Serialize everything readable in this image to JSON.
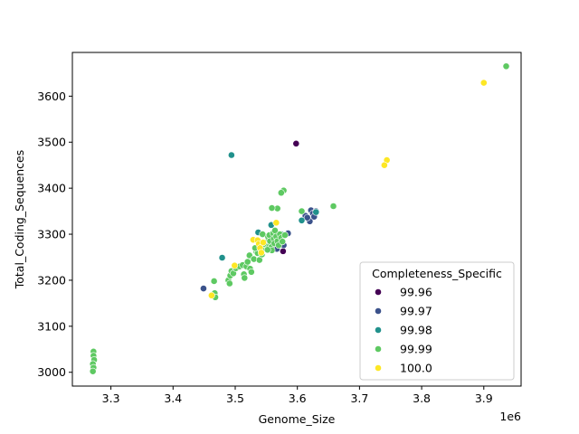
{
  "chart_data": {
    "type": "scatter",
    "title": "",
    "xlabel": "Genome_Size",
    "ylabel": "Total_Coding_Sequences",
    "x_offset_label": "1e6",
    "x_scale": 1000000,
    "xlim": [
      3.238,
      3.96
    ],
    "ylim": [
      2970,
      3695
    ],
    "xticks": [
      3.3,
      3.4,
      3.5,
      3.6,
      3.7,
      3.8,
      3.9
    ],
    "xtick_labels": [
      "3.3",
      "3.4",
      "3.5",
      "3.6",
      "3.7",
      "3.8",
      "3.9"
    ],
    "yticks": [
      3000,
      3100,
      3200,
      3300,
      3400,
      3500,
      3600
    ],
    "ytick_labels": [
      "3000",
      "3100",
      "3200",
      "3300",
      "3400",
      "3500",
      "3600"
    ],
    "grid": false,
    "legend": {
      "title": "Completeness_Specific",
      "placement": "lower-right",
      "entries": [
        {
          "label": "99.96",
          "color": "#440154"
        },
        {
          "label": "99.97",
          "color": "#3b528b"
        },
        {
          "label": "99.98",
          "color": "#21918c"
        },
        {
          "label": "99.99",
          "color": "#5ec962"
        },
        {
          "label": "100.0",
          "color": "#fde725"
        }
      ]
    },
    "series": [
      {
        "name": "99.96",
        "color": "#440154",
        "points": [
          [
            3.598,
            3497
          ],
          [
            3.577,
            3263
          ]
        ]
      },
      {
        "name": "99.97",
        "color": "#3b528b",
        "points": [
          [
            3.449,
            3182
          ],
          [
            3.578,
            3276
          ],
          [
            3.567,
            3268
          ],
          [
            3.585,
            3302
          ],
          [
            3.613,
            3340
          ],
          [
            3.618,
            3333
          ],
          [
            3.62,
            3328
          ],
          [
            3.622,
            3352
          ],
          [
            3.625,
            3345
          ],
          [
            3.63,
            3350
          ],
          [
            3.616,
            3336
          ],
          [
            3.627,
            3338
          ]
        ]
      },
      {
        "name": "99.98",
        "color": "#21918c",
        "points": [
          [
            3.494,
            3472
          ],
          [
            3.479,
            3249
          ],
          [
            3.558,
            3320
          ],
          [
            3.537,
            3304
          ],
          [
            3.607,
            3330
          ],
          [
            3.63,
            3348
          ],
          [
            3.575,
            3300
          ],
          [
            3.556,
            3290
          ]
        ]
      },
      {
        "name": "99.99",
        "color": "#5ec962",
        "points": [
          [
            3.272,
            3045
          ],
          [
            3.272,
            3036
          ],
          [
            3.273,
            3027
          ],
          [
            3.271,
            3018
          ],
          [
            3.272,
            3010
          ],
          [
            3.271,
            3002
          ],
          [
            3.936,
            3665
          ],
          [
            3.658,
            3361
          ],
          [
            3.607,
            3350
          ],
          [
            3.578,
            3395
          ],
          [
            3.574,
            3390
          ],
          [
            3.568,
            3356
          ],
          [
            3.559,
            3357
          ],
          [
            3.466,
            3198
          ],
          [
            3.467,
            3172
          ],
          [
            3.468,
            3163
          ],
          [
            3.489,
            3200
          ],
          [
            3.491,
            3193
          ],
          [
            3.492,
            3210
          ],
          [
            3.494,
            3220
          ],
          [
            3.497,
            3215
          ],
          [
            3.501,
            3226
          ],
          [
            3.507,
            3230
          ],
          [
            3.512,
            3233
          ],
          [
            3.514,
            3213
          ],
          [
            3.515,
            3205
          ],
          [
            3.518,
            3230
          ],
          [
            3.52,
            3240
          ],
          [
            3.523,
            3254
          ],
          [
            3.524,
            3225
          ],
          [
            3.526,
            3218
          ],
          [
            3.53,
            3246
          ],
          [
            3.534,
            3262
          ],
          [
            3.536,
            3259
          ],
          [
            3.539,
            3244
          ],
          [
            3.541,
            3268
          ],
          [
            3.544,
            3300
          ],
          [
            3.547,
            3270
          ],
          [
            3.549,
            3282
          ],
          [
            3.551,
            3275
          ],
          [
            3.553,
            3294
          ],
          [
            3.555,
            3298
          ],
          [
            3.556,
            3285
          ],
          [
            3.558,
            3272
          ],
          [
            3.559,
            3265
          ],
          [
            3.561,
            3302
          ],
          [
            3.562,
            3290
          ],
          [
            3.563,
            3280
          ],
          [
            3.564,
            3308
          ],
          [
            3.566,
            3295
          ],
          [
            3.568,
            3285
          ],
          [
            3.57,
            3276
          ],
          [
            3.572,
            3300
          ],
          [
            3.574,
            3292
          ],
          [
            3.576,
            3284
          ],
          [
            3.58,
            3298
          ],
          [
            3.552,
            3266
          ],
          [
            3.546,
            3279
          ],
          [
            3.543,
            3256
          ],
          [
            3.532,
            3270
          ]
        ]
      },
      {
        "name": "100.0",
        "color": "#fde725",
        "points": [
          [
            3.9,
            3629
          ],
          [
            3.744,
            3461
          ],
          [
            3.74,
            3450
          ],
          [
            3.566,
            3325
          ],
          [
            3.529,
            3288
          ],
          [
            3.536,
            3287
          ],
          [
            3.538,
            3279
          ],
          [
            3.545,
            3282
          ],
          [
            3.54,
            3270
          ],
          [
            3.542,
            3260
          ],
          [
            3.462,
            3167
          ],
          [
            3.499,
            3232
          ]
        ]
      }
    ]
  }
}
